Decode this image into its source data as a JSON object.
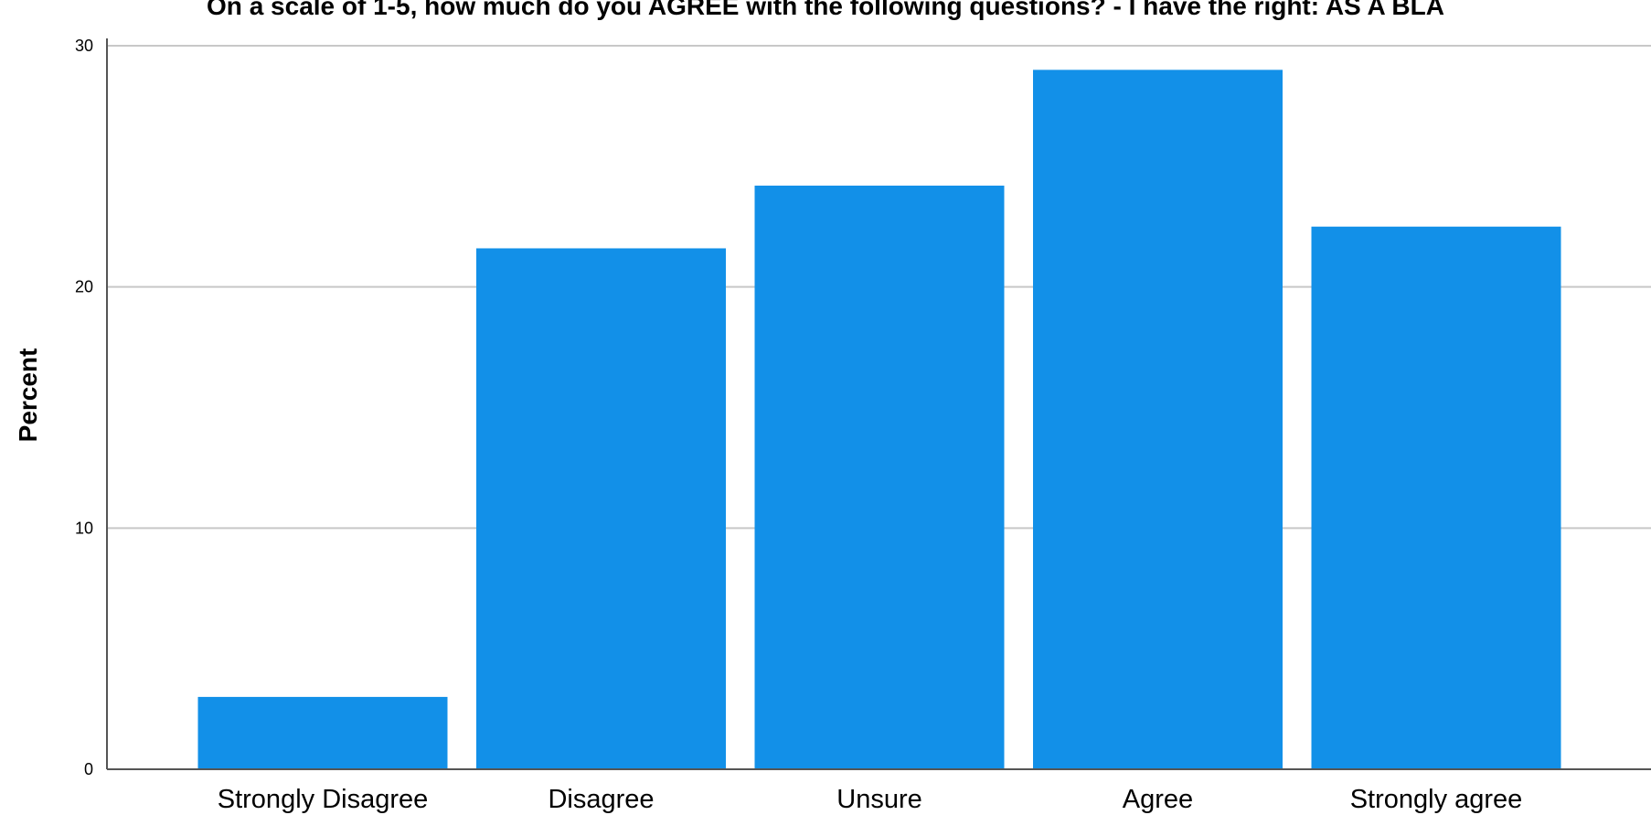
{
  "chart_data": {
    "type": "bar",
    "title": "On a scale of 1-5, how much do you AGREE with the following questions? - I have the right: AS A BLA",
    "xlabel": "",
    "ylabel": "Percent",
    "categories": [
      "Strongly Disagree",
      "Disagree",
      "Unsure",
      "Agree",
      "Strongly agree"
    ],
    "values": [
      3.0,
      21.6,
      24.2,
      29.0,
      22.5
    ],
    "ylim": [
      0,
      30
    ],
    "yticks": [
      0,
      10,
      20,
      30
    ],
    "grid": true,
    "legend": "none",
    "colors": {
      "bar": "#1290e8",
      "grid": "#c8c8c8",
      "axis": "#555555"
    }
  }
}
